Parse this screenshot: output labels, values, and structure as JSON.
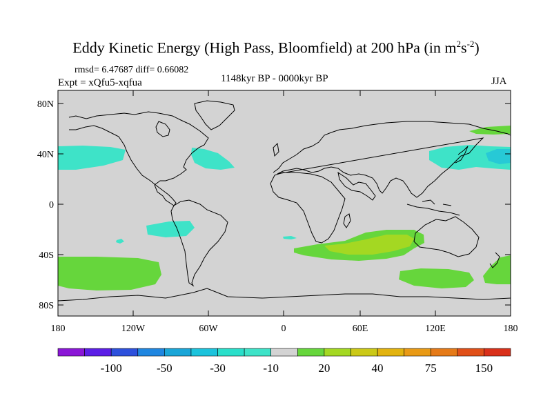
{
  "title": {
    "main": "Eddy Kinetic Energy (High Pass, Bloomfield) at 200 hPa (in m",
    "exp1": "2",
    "mid": "s",
    "exp2": "-2",
    "end": ")"
  },
  "stats": "rmsd= 6.47687 diff= 0.66082",
  "experiment": "Expt = xQfu5-xqfua",
  "period": "1148kyr BP - 0000kyr BP",
  "season": "JJA",
  "axes": {
    "lat_ticks": [
      "80N",
      "40N",
      "0",
      "40S",
      "80S"
    ],
    "lon_ticks": [
      "180",
      "120W",
      "60W",
      "0",
      "60E",
      "120E",
      "180"
    ]
  },
  "colors": {
    "land_bg": "#d3d3d3",
    "coast": "#000000",
    "neg_light": "#3ee3c8",
    "neg_mid": "#27c9d6",
    "pos_light": "#66d63c",
    "pos_mid": "#a4d822"
  },
  "colorbar": {
    "colors": [
      "#8a16d6",
      "#5b1ee6",
      "#2d50dc",
      "#1f86e0",
      "#1aa6d8",
      "#1cc3dc",
      "#2adfca",
      "#3ee3c8",
      "#d3d3d3",
      "#66d63c",
      "#a4d822",
      "#cbc917",
      "#e2b30f",
      "#e99a15",
      "#e57a18",
      "#e04f18",
      "#d9301a"
    ],
    "labels": [
      "-100",
      "-50",
      "-30",
      "-10",
      "20",
      "40",
      "75",
      "150"
    ]
  }
}
